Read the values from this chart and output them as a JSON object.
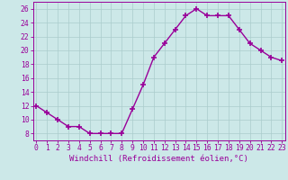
{
  "x": [
    0,
    1,
    2,
    3,
    4,
    5,
    6,
    7,
    8,
    9,
    10,
    11,
    12,
    13,
    14,
    15,
    16,
    17,
    18,
    19,
    20,
    21,
    22,
    23
  ],
  "y": [
    12,
    11,
    10,
    9,
    9,
    8,
    8,
    8,
    8,
    11.5,
    15,
    19,
    21,
    23,
    25,
    26,
    25,
    25,
    25,
    23,
    21,
    20,
    19,
    18.5
  ],
  "line_color": "#990099",
  "marker": "+",
  "marker_size": 4,
  "marker_edge_width": 1.2,
  "line_width": 1.0,
  "background_color": "#cce8e8",
  "grid_color": "#aacccc",
  "xlabel": "Windchill (Refroidissement éolien,°C)",
  "xlabel_fontsize": 6.5,
  "tick_fontsize": 5.8,
  "ylim": [
    7,
    27
  ],
  "yticks": [
    8,
    10,
    12,
    14,
    16,
    18,
    20,
    22,
    24,
    26
  ],
  "xticks": [
    0,
    1,
    2,
    3,
    4,
    5,
    6,
    7,
    8,
    9,
    10,
    11,
    12,
    13,
    14,
    15,
    16,
    17,
    18,
    19,
    20,
    21,
    22,
    23
  ],
  "xlim": [
    -0.3,
    23.3
  ]
}
